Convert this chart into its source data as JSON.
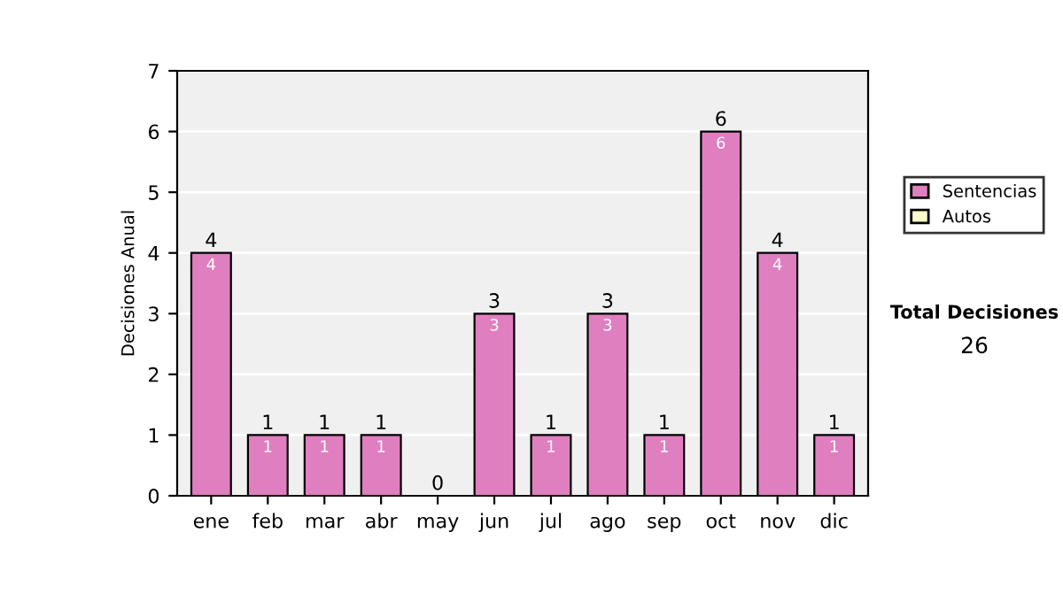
{
  "chart_data": {
    "type": "bar",
    "stacked": true,
    "ylabel": "Decisiones Anual",
    "categories": [
      "ene",
      "feb",
      "mar",
      "abr",
      "may",
      "jun",
      "jul",
      "ago",
      "sep",
      "oct",
      "nov",
      "dic"
    ],
    "series": [
      {
        "name": "Sentencias",
        "color": "#e07fc0",
        "values": [
          4,
          1,
          1,
          1,
          0,
          3,
          1,
          3,
          1,
          6,
          4,
          1
        ],
        "value_labels": [
          "4",
          "1",
          "1",
          "1",
          null,
          "3",
          "1",
          "3",
          "1",
          "6",
          "4",
          "1"
        ]
      },
      {
        "name": "Autos",
        "color": "#ffffcc",
        "values": [
          0,
          0,
          0,
          0,
          0,
          0,
          0,
          0,
          0,
          0,
          0,
          0
        ]
      }
    ],
    "totals": [
      "4",
      "1",
      "1",
      "1",
      "0",
      "3",
      "1",
      "3",
      "1",
      "6",
      "4",
      "1"
    ],
    "ylim": [
      0,
      7
    ],
    "yticks": [
      0,
      1,
      2,
      3,
      4,
      5,
      6,
      7
    ],
    "grid": "y",
    "legend": "right",
    "annotations": [
      "Total Decisiones",
      "26"
    ]
  }
}
